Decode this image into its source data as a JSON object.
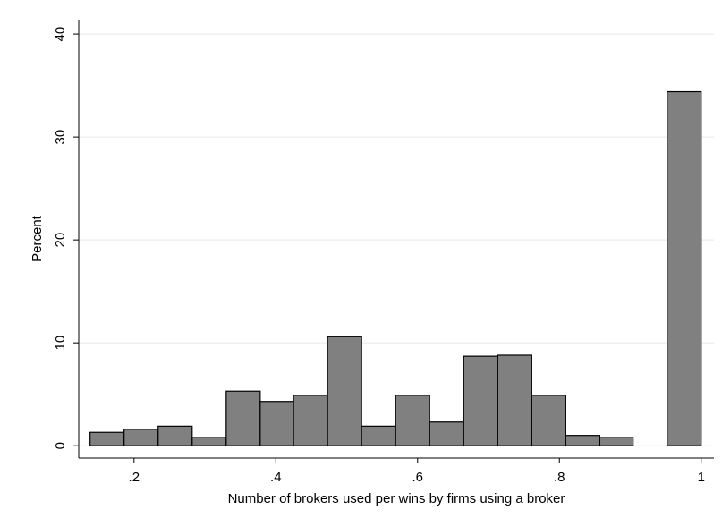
{
  "chart_data": {
    "type": "histogram",
    "xlabel": "Number of brokers used per wins by firms using a broker",
    "ylabel": "Percent",
    "bins": [
      0.138,
      0.186,
      0.234,
      0.282,
      0.33,
      0.378,
      0.425,
      0.473,
      0.521,
      0.569,
      0.617,
      0.665,
      0.713,
      0.761,
      0.809,
      0.857,
      0.904,
      0.952,
      1.0
    ],
    "counts": [
      1.3,
      1.6,
      1.9,
      0.8,
      5.3,
      4.3,
      4.9,
      10.6,
      1.9,
      4.9,
      2.3,
      8.7,
      8.8,
      4.9,
      1.0,
      0.8,
      0,
      34.4
    ],
    "color": "#808080",
    "xlim": [
      0.122,
      1.018
    ],
    "ylim": [
      -1.2,
      41.4
    ],
    "xticks": [
      {
        "value": 0.2,
        "label": ".2"
      },
      {
        "value": 0.4,
        "label": ".4"
      },
      {
        "value": 0.6,
        "label": ".6"
      },
      {
        "value": 0.8,
        "label": ".8"
      },
      1
    ],
    "yticks": [
      0,
      10,
      20,
      30,
      40
    ],
    "grid": true
  }
}
